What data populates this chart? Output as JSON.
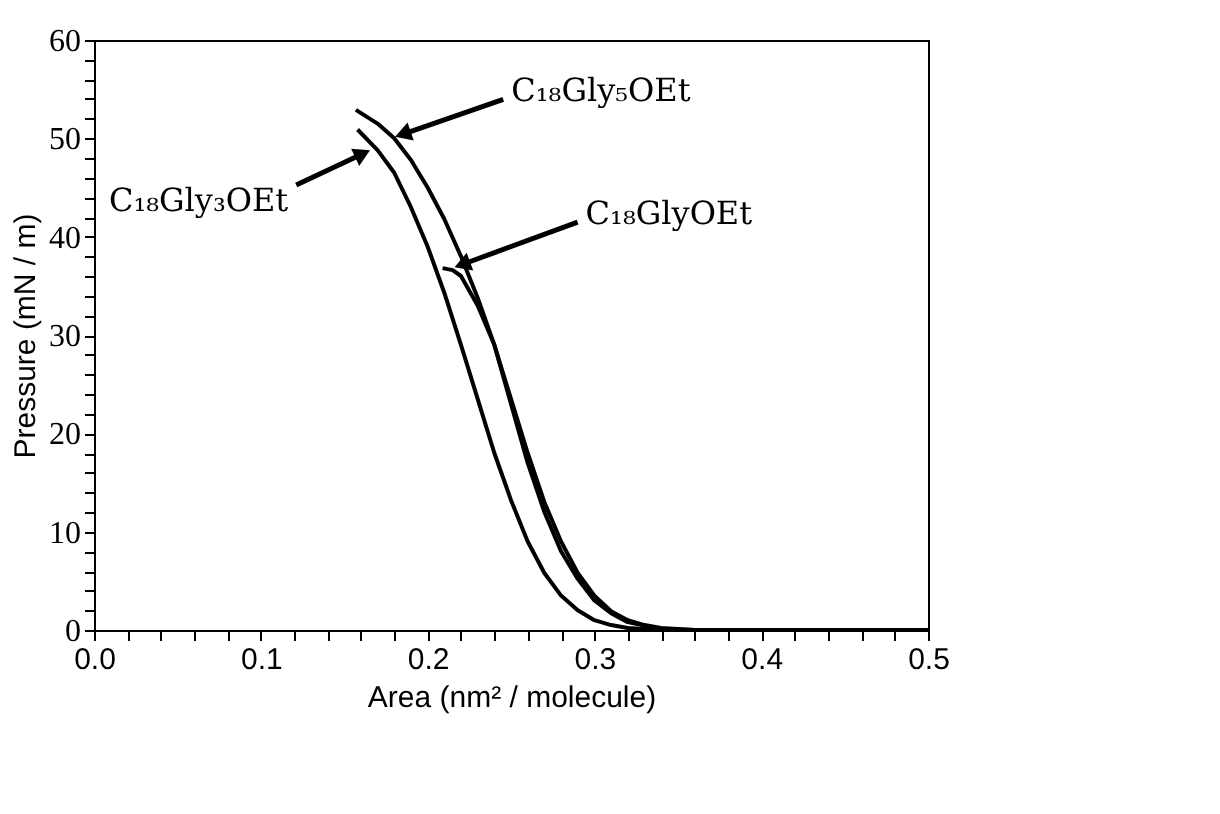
{
  "chart_data": {
    "type": "line",
    "xlabel": "Area (nm² / molecule)",
    "ylabel": "Pressure (mN / m)",
    "xlim": [
      0,
      0.5
    ],
    "ylim": [
      0,
      60
    ],
    "xticks": [
      {
        "value": 0,
        "label": "0.0"
      },
      {
        "value": 0.02,
        "label": null
      },
      {
        "value": 0.04,
        "label": null
      },
      {
        "value": 0.06,
        "label": null
      },
      {
        "value": 0.08,
        "label": null
      },
      0.1,
      {
        "value": 0.12,
        "label": null
      },
      {
        "value": 0.14,
        "label": null
      },
      {
        "value": 0.16,
        "label": null
      },
      {
        "value": 0.18,
        "label": null
      },
      0.2,
      {
        "value": 0.22,
        "label": null
      },
      {
        "value": 0.24,
        "label": null
      },
      {
        "value": 0.26,
        "label": null
      },
      {
        "value": 0.28,
        "label": null
      },
      0.3,
      {
        "value": 0.32,
        "label": null
      },
      {
        "value": 0.34,
        "label": null
      },
      {
        "value": 0.36,
        "label": null
      },
      {
        "value": 0.38,
        "label": null
      },
      0.4,
      {
        "value": 0.42,
        "label": null
      },
      {
        "value": 0.44,
        "label": null
      },
      {
        "value": 0.46,
        "label": null
      },
      {
        "value": 0.48,
        "label": null
      },
      0.5
    ],
    "yticks": [
      0,
      {
        "value": 2,
        "label": null
      },
      {
        "value": 4,
        "label": null
      },
      {
        "value": 6,
        "label": null
      },
      {
        "value": 8,
        "label": null
      },
      10,
      {
        "value": 12,
        "label": null
      },
      {
        "value": 14,
        "label": null
      },
      {
        "value": 16,
        "label": null
      },
      {
        "value": 18,
        "label": null
      },
      20,
      {
        "value": 22,
        "label": null
      },
      {
        "value": 24,
        "label": null
      },
      {
        "value": 26,
        "label": null
      },
      {
        "value": 28,
        "label": null
      },
      30,
      {
        "value": 32,
        "label": null
      },
      {
        "value": 34,
        "label": null
      },
      {
        "value": 36,
        "label": null
      },
      {
        "value": 38,
        "label": null
      },
      40,
      {
        "value": 42,
        "label": null
      },
      {
        "value": 44,
        "label": null
      },
      {
        "value": 46,
        "label": null
      },
      {
        "value": 48,
        "label": null
      },
      50,
      {
        "value": 52,
        "label": null
      },
      {
        "value": 54,
        "label": null
      },
      {
        "value": 56,
        "label": null
      },
      {
        "value": 58,
        "label": null
      },
      60
    ],
    "grid": false,
    "marker": "none",
    "line_style": "solid",
    "series": [
      {
        "color": "#000000",
        "x": [
          0.157,
          0.17,
          0.18,
          0.19,
          0.2,
          0.21,
          0.22,
          0.23,
          0.24,
          0.25,
          0.26,
          0.27,
          0.28,
          0.29,
          0.3,
          0.31,
          0.32,
          0.33,
          0.34,
          0.36,
          0.5
        ],
        "values": [
          52.9,
          51.5,
          50,
          47.8,
          45,
          41.8,
          38,
          33.8,
          29,
          23.5,
          18,
          13,
          9,
          5.8,
          3.5,
          1.9,
          1,
          0.5,
          0.2,
          0,
          0
        ]
      },
      {
        "color": "#000000",
        "x": [
          0.158,
          0.17,
          0.18,
          0.19,
          0.2,
          0.21,
          0.22,
          0.23,
          0.24,
          0.25,
          0.26,
          0.27,
          0.28,
          0.29,
          0.3,
          0.31,
          0.32,
          0.34,
          0.5
        ],
        "values": [
          50.9,
          48.8,
          46.5,
          43,
          39,
          34.3,
          29,
          23.5,
          18,
          13.2,
          9,
          5.8,
          3.5,
          2,
          1,
          0.5,
          0.2,
          0,
          0
        ]
      },
      {
        "color": "#000000",
        "x": [
          0.209,
          0.215,
          0.22,
          0.23,
          0.24,
          0.25,
          0.26,
          0.27,
          0.28,
          0.29,
          0.3,
          0.31,
          0.32,
          0.34,
          0.36,
          0.5
        ],
        "values": [
          36.8,
          36.6,
          36,
          33,
          29,
          23,
          17,
          12,
          8,
          5.2,
          3,
          1.7,
          0.8,
          0.1,
          0,
          0
        ]
      }
    ],
    "annotations": [
      {
        "text": "C₁₈Gly₅OEt",
        "x": 0.183,
        "y": 50.3
      },
      {
        "text": "C₁₈Gly₃OEt",
        "x": 0.162,
        "y": 48.5
      },
      {
        "text": "C₁₈GlyOEt",
        "x": 0.218,
        "y": 37
      }
    ]
  }
}
